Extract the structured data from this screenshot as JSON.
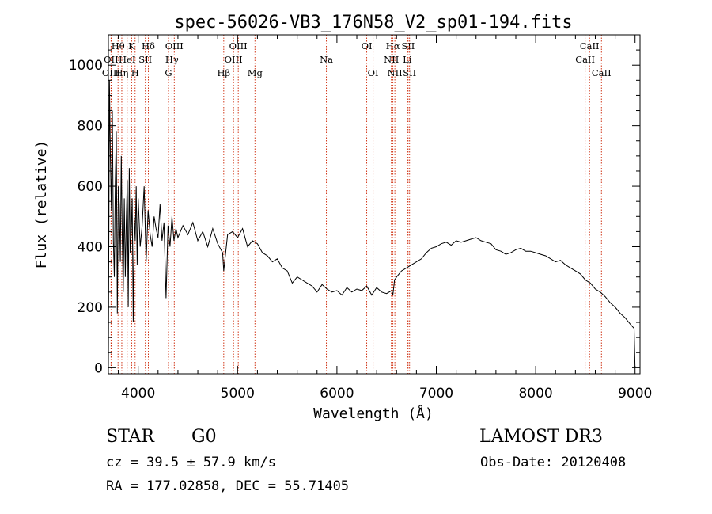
{
  "chart_data": {
    "type": "line",
    "title": "spec-56026-VB3_176N58_V2_sp01-194.fits",
    "xlabel": "Wavelength (Å)",
    "ylabel": "Flux (relative)",
    "xlim": [
      3700,
      9050
    ],
    "ylim": [
      -20,
      1100
    ],
    "xticks": [
      4000,
      5000,
      6000,
      7000,
      8000,
      9000
    ],
    "yticks": [
      0,
      200,
      400,
      600,
      800,
      1000
    ],
    "grid": false,
    "series": [
      {
        "name": "flux",
        "x": [
          3700,
          3710,
          3720,
          3730,
          3740,
          3750,
          3760,
          3770,
          3780,
          3790,
          3800,
          3810,
          3820,
          3830,
          3840,
          3850,
          3860,
          3870,
          3880,
          3890,
          3900,
          3910,
          3920,
          3930,
          3940,
          3950,
          3960,
          3970,
          3980,
          3990,
          4000,
          4020,
          4040,
          4060,
          4080,
          4100,
          4120,
          4140,
          4160,
          4180,
          4200,
          4220,
          4240,
          4260,
          4280,
          4300,
          4320,
          4340,
          4360,
          4380,
          4400,
          4450,
          4500,
          4550,
          4600,
          4650,
          4700,
          4750,
          4800,
          4850,
          4861,
          4900,
          4950,
          5000,
          5050,
          5100,
          5150,
          5200,
          5250,
          5300,
          5350,
          5400,
          5450,
          5500,
          5550,
          5600,
          5650,
          5700,
          5750,
          5800,
          5850,
          5900,
          5950,
          6000,
          6050,
          6100,
          6150,
          6200,
          6250,
          6300,
          6350,
          6400,
          6450,
          6500,
          6550,
          6563,
          6580,
          6600,
          6650,
          6700,
          6750,
          6800,
          6850,
          6900,
          6950,
          7000,
          7050,
          7100,
          7150,
          7200,
          7250,
          7300,
          7350,
          7400,
          7450,
          7500,
          7550,
          7600,
          7650,
          7700,
          7750,
          7800,
          7850,
          7900,
          7950,
          8000,
          8050,
          8100,
          8150,
          8200,
          8250,
          8300,
          8350,
          8400,
          8450,
          8500,
          8550,
          8600,
          8650,
          8700,
          8750,
          8800,
          8850,
          8900,
          8950,
          8990,
          9000
        ],
        "values": [
          0,
          950,
          700,
          520,
          850,
          420,
          300,
          620,
          780,
          180,
          600,
          540,
          350,
          700,
          420,
          250,
          560,
          300,
          480,
          620,
          200,
          660,
          380,
          450,
          560,
          150,
          500,
          420,
          600,
          340,
          560,
          400,
          470,
          600,
          350,
          520,
          440,
          400,
          500,
          460,
          430,
          540,
          420,
          480,
          230,
          470,
          400,
          500,
          420,
          460,
          430,
          470,
          440,
          480,
          420,
          450,
          400,
          460,
          410,
          380,
          320,
          440,
          450,
          430,
          460,
          400,
          420,
          410,
          380,
          370,
          350,
          360,
          330,
          320,
          280,
          300,
          290,
          280,
          270,
          250,
          275,
          260,
          250,
          255,
          240,
          265,
          250,
          260,
          255,
          270,
          240,
          265,
          250,
          245,
          255,
          240,
          290,
          300,
          320,
          330,
          340,
          350,
          360,
          380,
          395,
          400,
          410,
          415,
          405,
          420,
          415,
          420,
          425,
          430,
          420,
          415,
          410,
          390,
          385,
          375,
          380,
          390,
          395,
          385,
          385,
          380,
          375,
          370,
          360,
          350,
          355,
          340,
          330,
          320,
          310,
          290,
          280,
          260,
          250,
          235,
          215,
          200,
          180,
          165,
          145,
          130,
          0
        ]
      }
    ],
    "line_markers": [
      {
        "label": "Hθ",
        "wave": 3797,
        "row": 1
      },
      {
        "label": "OII",
        "wave": 3727,
        "row": 2
      },
      {
        "label": "OIII",
        "wave": 3727,
        "row": 3
      },
      {
        "label": "HeI",
        "wave": 3889,
        "row": 2
      },
      {
        "label": "Hη",
        "wave": 3835,
        "row": 3
      },
      {
        "label": "K",
        "wave": 3934,
        "row": 1
      },
      {
        "label": "SII",
        "wave": 4072,
        "row": 2
      },
      {
        "label": "H",
        "wave": 3969,
        "row": 3
      },
      {
        "label": "Hδ",
        "wave": 4102,
        "row": 1
      },
      {
        "label": "OIII",
        "wave": 4363,
        "row": 1
      },
      {
        "label": "Hγ",
        "wave": 4340,
        "row": 2
      },
      {
        "label": "G",
        "wave": 4305,
        "row": 3
      },
      {
        "label": "OIII",
        "wave": 5007,
        "row": 1
      },
      {
        "label": "OIII",
        "wave": 4959,
        "row": 2
      },
      {
        "label": "Hβ",
        "wave": 4861,
        "row": 3
      },
      {
        "label": "Mg",
        "wave": 5175,
        "row": 3
      },
      {
        "label": "Na",
        "wave": 5894,
        "row": 2
      },
      {
        "label": "OI",
        "wave": 6300,
        "row": 1
      },
      {
        "label": "OI",
        "wave": 6364,
        "row": 3
      },
      {
        "label": "Hα",
        "wave": 6563,
        "row": 1
      },
      {
        "label": "SII",
        "wave": 6716,
        "row": 1
      },
      {
        "label": "NII",
        "wave": 6548,
        "row": 2
      },
      {
        "label": "Li",
        "wave": 6708,
        "row": 2
      },
      {
        "label": "NII",
        "wave": 6583,
        "row": 3
      },
      {
        "label": "SII",
        "wave": 6731,
        "row": 3
      },
      {
        "label": "CaII",
        "wave": 8542,
        "row": 1
      },
      {
        "label": "CaII",
        "wave": 8498,
        "row": 2
      },
      {
        "label": "CaII",
        "wave": 8662,
        "row": 3
      }
    ]
  },
  "info": {
    "object_class": "STAR",
    "subclass": "G0",
    "survey": "LAMOST DR3",
    "cz_line": "cz = 39.5 ± 57.9 km/s",
    "obs_date_line": "Obs-Date: 20120408",
    "radec_line": "RA = 177.02858, DEC =  55.71405"
  },
  "colors": {
    "line_marker": "#cc2200",
    "spectrum": "#000000",
    "axis": "#000000"
  }
}
